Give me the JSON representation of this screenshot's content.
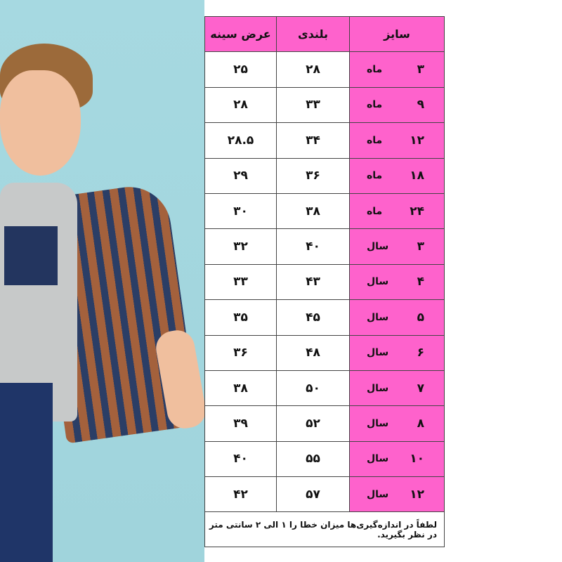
{
  "headers": {
    "size": "سایز",
    "height": "بلندی",
    "chest": "عرض سینه"
  },
  "rows": [
    {
      "size": "۳",
      "unit": "ماه",
      "height": "۲۸",
      "chest": "۲۵"
    },
    {
      "size": "۹",
      "unit": "ماه",
      "height": "۳۳",
      "chest": "۲۸"
    },
    {
      "size": "۱۲",
      "unit": "ماه",
      "height": "۳۴",
      "chest": "۲۸.۵"
    },
    {
      "size": "۱۸",
      "unit": "ماه",
      "height": "۳۶",
      "chest": "۲۹"
    },
    {
      "size": "۲۴",
      "unit": "ماه",
      "height": "۳۸",
      "chest": "۳۰"
    },
    {
      "size": "۳",
      "unit": "سال",
      "height": "۴۰",
      "chest": "۳۲"
    },
    {
      "size": "۴",
      "unit": "سال",
      "height": "۴۳",
      "chest": "۳۳"
    },
    {
      "size": "۵",
      "unit": "سال",
      "height": "۴۵",
      "chest": "۳۵"
    },
    {
      "size": "۶",
      "unit": "سال",
      "height": "۴۸",
      "chest": "۳۶"
    },
    {
      "size": "۷",
      "unit": "سال",
      "height": "۵۰",
      "chest": "۳۸"
    },
    {
      "size": "۸",
      "unit": "سال",
      "height": "۵۲",
      "chest": "۳۹"
    },
    {
      "size": "۱۰",
      "unit": "سال",
      "height": "۵۵",
      "chest": "۴۰"
    },
    {
      "size": "۱۲",
      "unit": "سال",
      "height": "۵۷",
      "chest": "۴۲"
    }
  ],
  "note": "لطفاً در اندازه‌گیری‌ها میزان خطا را ۱ الی ۲ سانتی متر در نظر بگیرید.",
  "colors": {
    "header": "#fe62cc",
    "photo_background": "#a6d9e1"
  }
}
